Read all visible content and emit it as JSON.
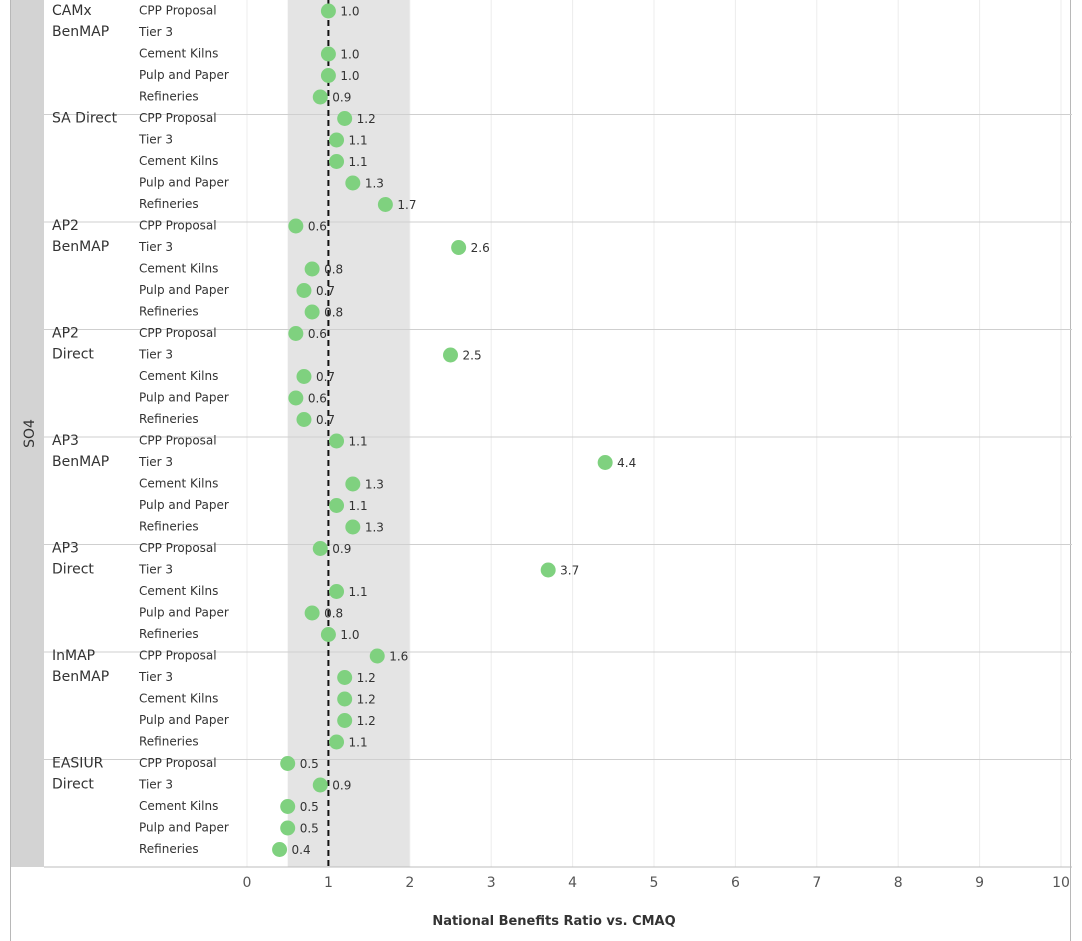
{
  "chart_data": {
    "type": "scatter",
    "xlabel": "National Benefits Ratio vs. CMAQ",
    "xlim": [
      0,
      10
    ],
    "x_ticks": [
      "0",
      "1",
      "2",
      "3",
      "4",
      "5",
      "6",
      "7",
      "8",
      "9",
      "10"
    ],
    "shaded_band": [
      0.5,
      2
    ],
    "reference_line": 1,
    "grid": true,
    "pollutant": "SO4",
    "point_color": "#7fd17f",
    "categories": [
      "CPP Proposal",
      "Tier 3",
      "Cement Kilns",
      "Pulp and Paper",
      "Refineries"
    ],
    "groups": [
      {
        "label": [
          "CAMx",
          "BenMAP"
        ],
        "values": [
          1.0,
          null,
          1.0,
          1.0,
          0.9
        ],
        "labels": [
          "1.0",
          "",
          "1.0",
          "1.0",
          "0.9"
        ]
      },
      {
        "label": [
          "SA Direct"
        ],
        "values": [
          1.2,
          1.1,
          1.1,
          1.3,
          1.7
        ],
        "labels": [
          "1.2",
          "1.1",
          "1.1",
          "1.3",
          "1.7"
        ]
      },
      {
        "label": [
          "AP2",
          "BenMAP"
        ],
        "values": [
          0.6,
          2.6,
          0.8,
          0.7,
          0.8
        ],
        "labels": [
          "0.6",
          "2.6",
          "0.8",
          "0.7",
          "0.8"
        ]
      },
      {
        "label": [
          "AP2",
          "Direct"
        ],
        "values": [
          0.6,
          2.5,
          0.7,
          0.6,
          0.7
        ],
        "labels": [
          "0.6",
          "2.5",
          "0.7",
          "0.6",
          "0.7"
        ]
      },
      {
        "label": [
          "AP3",
          "BenMAP"
        ],
        "values": [
          1.1,
          4.4,
          1.3,
          1.1,
          1.3
        ],
        "labels": [
          "1.1",
          "4.4",
          "1.3",
          "1.1",
          "1.3"
        ]
      },
      {
        "label": [
          "AP3",
          "Direct"
        ],
        "values": [
          0.9,
          3.7,
          1.1,
          0.8,
          1.0
        ],
        "labels": [
          "0.9",
          "3.7",
          "1.1",
          "0.8",
          "1.0"
        ]
      },
      {
        "label": [
          "InMAP",
          "BenMAP"
        ],
        "values": [
          1.6,
          1.2,
          1.2,
          1.2,
          1.1
        ],
        "labels": [
          "1.6",
          "1.2",
          "1.2",
          "1.2",
          "1.1"
        ]
      },
      {
        "label": [
          "EASIUR",
          "Direct"
        ],
        "values": [
          0.5,
          0.9,
          0.5,
          0.5,
          0.4
        ],
        "labels": [
          "0.5",
          "0.9",
          "0.5",
          "0.5",
          "0.4"
        ]
      }
    ]
  }
}
